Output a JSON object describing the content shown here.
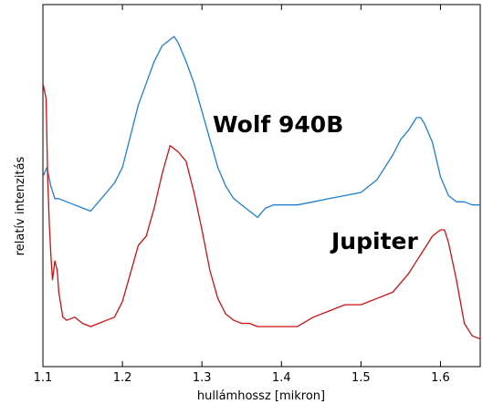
{
  "chart_data": {
    "type": "line",
    "xlabel": "hullámhossz [mikron]",
    "ylabel": "relatív intenzitás",
    "xlim": [
      1.1,
      1.65
    ],
    "ylim": [
      0,
      1
    ],
    "x_ticks": [
      "1.1",
      "1.2",
      "1.3",
      "1.4",
      "1.5",
      "1.6"
    ],
    "y_tick_labels": false,
    "grid": false,
    "legend": "none",
    "series": [
      {
        "name": "Wolf 940B",
        "color": "#1f7fcf",
        "x": [
          1.1,
          1.105,
          1.11,
          1.115,
          1.12,
          1.13,
          1.14,
          1.15,
          1.16,
          1.17,
          1.18,
          1.19,
          1.2,
          1.21,
          1.22,
          1.23,
          1.24,
          1.25,
          1.26,
          1.265,
          1.27,
          1.28,
          1.29,
          1.3,
          1.31,
          1.32,
          1.33,
          1.34,
          1.35,
          1.36,
          1.37,
          1.38,
          1.39,
          1.4,
          1.42,
          1.44,
          1.46,
          1.48,
          1.5,
          1.52,
          1.54,
          1.55,
          1.56,
          1.57,
          1.575,
          1.58,
          1.59,
          1.6,
          1.61,
          1.62,
          1.63,
          1.64,
          1.65
        ],
        "values": [
          0.55,
          0.58,
          0.52,
          0.48,
          0.48,
          0.47,
          0.46,
          0.45,
          0.44,
          0.47,
          0.5,
          0.53,
          0.58,
          0.68,
          0.78,
          0.85,
          0.92,
          0.97,
          0.99,
          1.0,
          0.98,
          0.92,
          0.85,
          0.76,
          0.67,
          0.58,
          0.52,
          0.48,
          0.46,
          0.44,
          0.42,
          0.45,
          0.46,
          0.46,
          0.46,
          0.47,
          0.48,
          0.49,
          0.5,
          0.54,
          0.62,
          0.67,
          0.7,
          0.74,
          0.74,
          0.72,
          0.66,
          0.55,
          0.49,
          0.47,
          0.47,
          0.46,
          0.46
        ]
      },
      {
        "name": "Jupiter",
        "color": "#cc1111",
        "x": [
          1.1,
          1.104,
          1.106,
          1.108,
          1.11,
          1.112,
          1.115,
          1.118,
          1.12,
          1.125,
          1.13,
          1.14,
          1.15,
          1.16,
          1.17,
          1.18,
          1.19,
          1.2,
          1.21,
          1.22,
          1.23,
          1.24,
          1.25,
          1.26,
          1.27,
          1.28,
          1.29,
          1.3,
          1.31,
          1.32,
          1.33,
          1.34,
          1.35,
          1.36,
          1.37,
          1.38,
          1.4,
          1.42,
          1.44,
          1.46,
          1.48,
          1.5,
          1.52,
          1.54,
          1.56,
          1.57,
          1.58,
          1.59,
          1.6,
          1.605,
          1.61,
          1.62,
          1.63,
          1.64,
          1.65
        ],
        "values": [
          0.85,
          0.8,
          0.55,
          0.4,
          0.3,
          0.22,
          0.28,
          0.25,
          0.18,
          0.1,
          0.09,
          0.1,
          0.08,
          0.07,
          0.08,
          0.09,
          0.1,
          0.15,
          0.24,
          0.33,
          0.36,
          0.45,
          0.56,
          0.65,
          0.63,
          0.6,
          0.5,
          0.38,
          0.25,
          0.16,
          0.11,
          0.09,
          0.08,
          0.08,
          0.07,
          0.07,
          0.07,
          0.07,
          0.1,
          0.12,
          0.14,
          0.14,
          0.16,
          0.18,
          0.24,
          0.28,
          0.32,
          0.36,
          0.38,
          0.38,
          0.34,
          0.22,
          0.08,
          0.04,
          0.03
        ]
      }
    ]
  }
}
